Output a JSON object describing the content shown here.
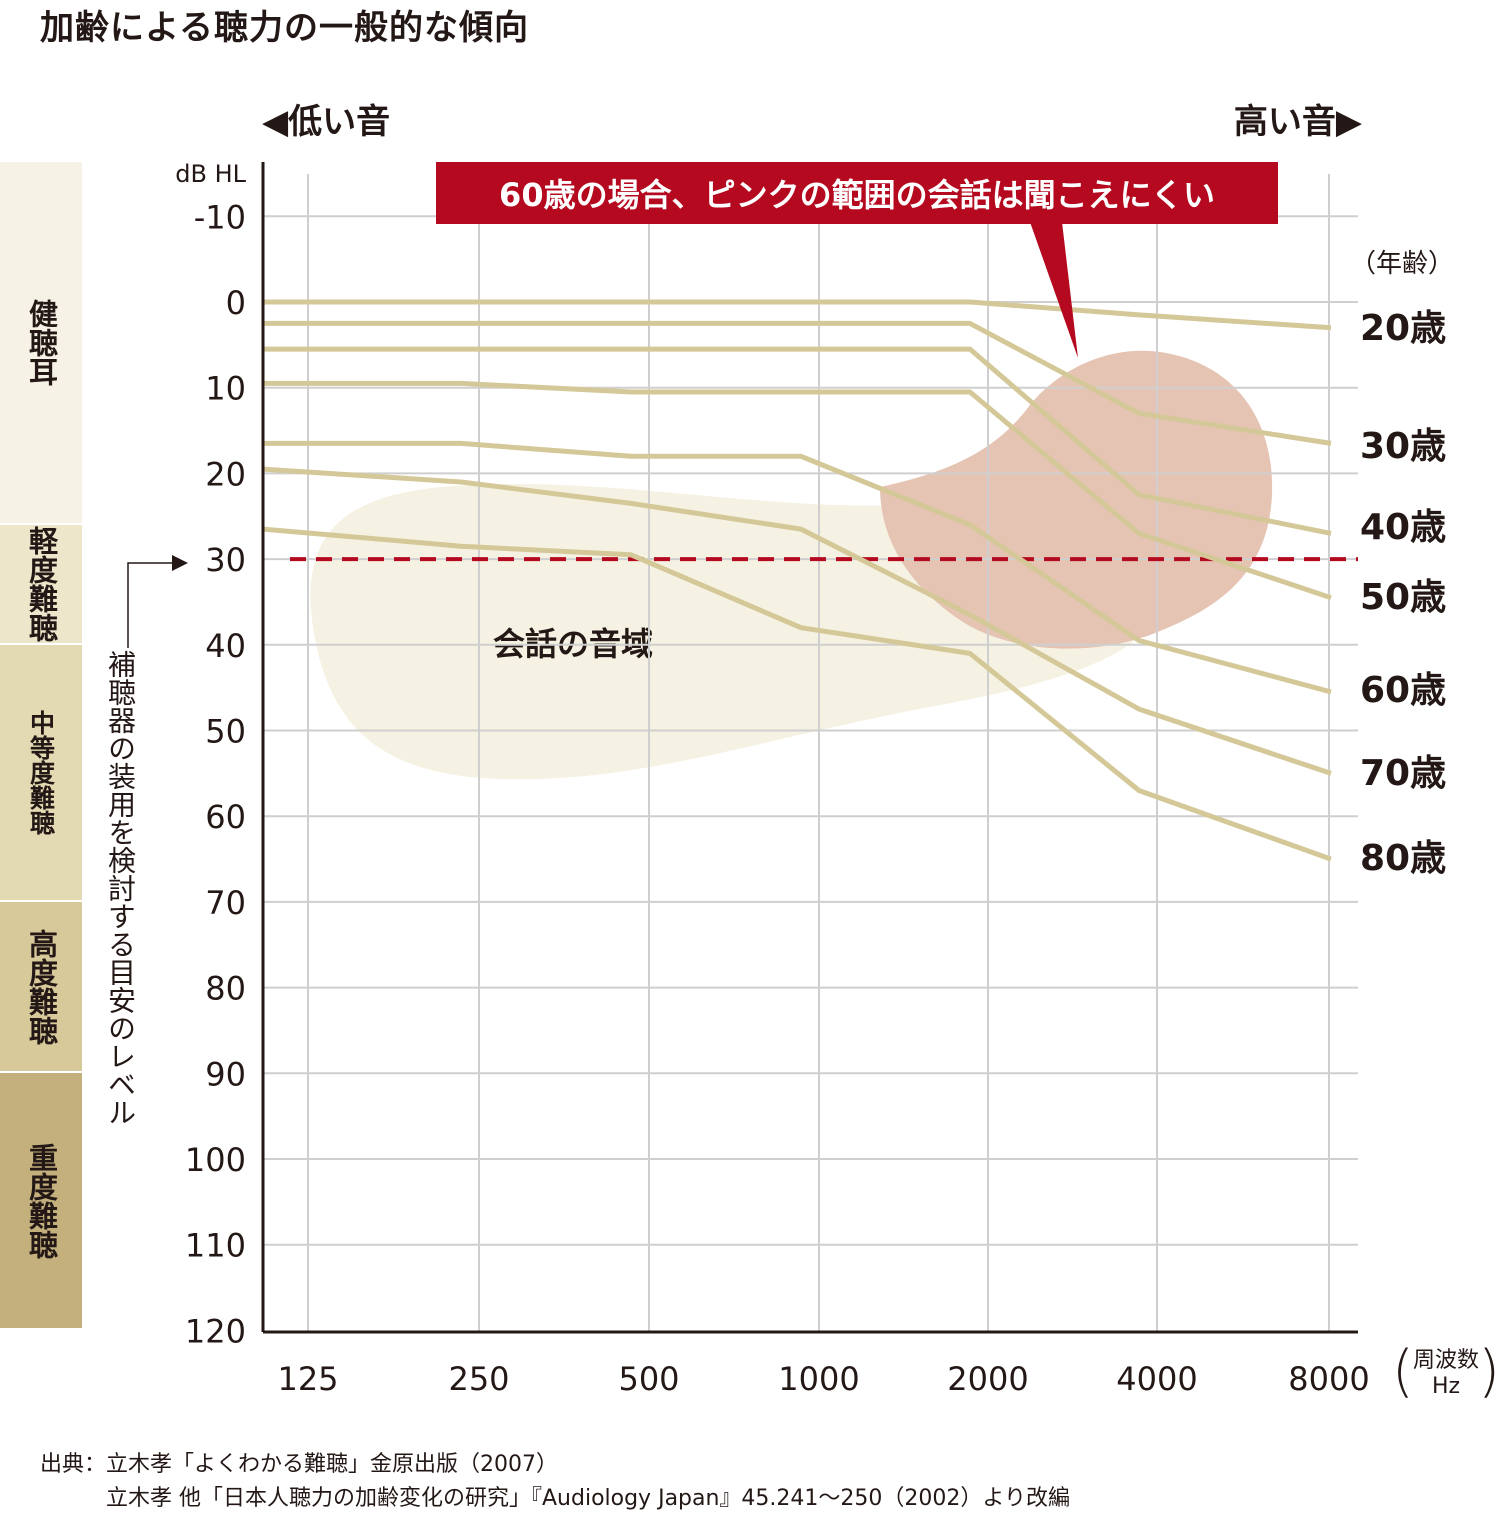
{
  "title": "加齢による聴力の一般的な傾向",
  "direction_low": "◀低い音",
  "direction_high": "高い音▶",
  "callout": "60歳の場合、ピンクの範囲の会話は聞こえにくい",
  "age_heading": "（年齢）",
  "speech_range_label": "会話の音域",
  "hearing_aid_label": "補聴器の装用を検討する目安のレベル",
  "unit_frequency": "周波数",
  "unit_hz": "Hz",
  "source_line1": "出典：立木孝「よくわかる難聴」金原出版（2007）",
  "source_line2": "立木孝 他「日本人聴力の加齢変化の研究」『Audiology Japan』45.241〜250（2002）より改編",
  "severity_bands": [
    {
      "label": "健聴耳",
      "from": -15,
      "to": 26,
      "color": "#f6f3e6"
    },
    {
      "label": "軽度難聴",
      "from": 26,
      "to": 40,
      "color": "#eee6ca"
    },
    {
      "label": "中等度難聴",
      "from": 40,
      "to": 70,
      "color": "#e3d9b3"
    },
    {
      "label": "高度難聴",
      "from": 70,
      "to": 90,
      "color": "#d8c99a"
    },
    {
      "label": "重度難聴",
      "from": 90,
      "to": 120,
      "color": "#c4b07c"
    }
  ],
  "colors": {
    "line": "#d5c898",
    "grid": "#cfcfcf",
    "axis": "#231815",
    "threshold": "#b5091f",
    "speech_area": "#f6f2e3",
    "hard_to_hear_area": "#e5c4b3",
    "callout_bg": "#b5091f"
  },
  "chart_data": {
    "type": "line",
    "title": "加齢による聴力の一般的な傾向",
    "ylabel": "dB HL",
    "xlabel": "周波数 Hz",
    "x": [
      125,
      250,
      500,
      1000,
      2000,
      4000,
      8000
    ],
    "x_tick_labels": [
      "125",
      "250",
      "500",
      "1000",
      "2000",
      "4000",
      "8000"
    ],
    "ylim": [
      -15,
      120
    ],
    "y_inverted": true,
    "y_ticks": [
      -10,
      0,
      10,
      20,
      30,
      40,
      50,
      60,
      70,
      80,
      90,
      100,
      110,
      120
    ],
    "y_tick_labels": [
      "-10",
      "0",
      "10",
      "20",
      "30",
      "40",
      "50",
      "60",
      "70",
      "80",
      "90",
      "100",
      "110",
      "120"
    ],
    "threshold_line": 30,
    "grid": true,
    "series": [
      {
        "name": "20歳",
        "values": [
          0,
          0,
          0,
          0,
          0,
          1.5,
          3
        ]
      },
      {
        "name": "30歳",
        "values": [
          2.5,
          2.5,
          2.5,
          2.5,
          2.5,
          13,
          16.5
        ]
      },
      {
        "name": "40歳",
        "values": [
          5.5,
          5.5,
          5.5,
          5.5,
          5.5,
          22.5,
          27
        ]
      },
      {
        "name": "50歳",
        "values": [
          9.5,
          9.5,
          10.5,
          10.5,
          10.5,
          27,
          34.5
        ]
      },
      {
        "name": "60歳",
        "values": [
          16.5,
          16.5,
          18,
          18,
          26,
          39.5,
          45.5
        ]
      },
      {
        "name": "70歳",
        "values": [
          19.5,
          21,
          23.5,
          26.5,
          36.5,
          47.5,
          55
        ]
      },
      {
        "name": "80歳",
        "values": [
          26.5,
          28.5,
          29.5,
          38,
          41,
          57,
          65
        ]
      }
    ]
  }
}
